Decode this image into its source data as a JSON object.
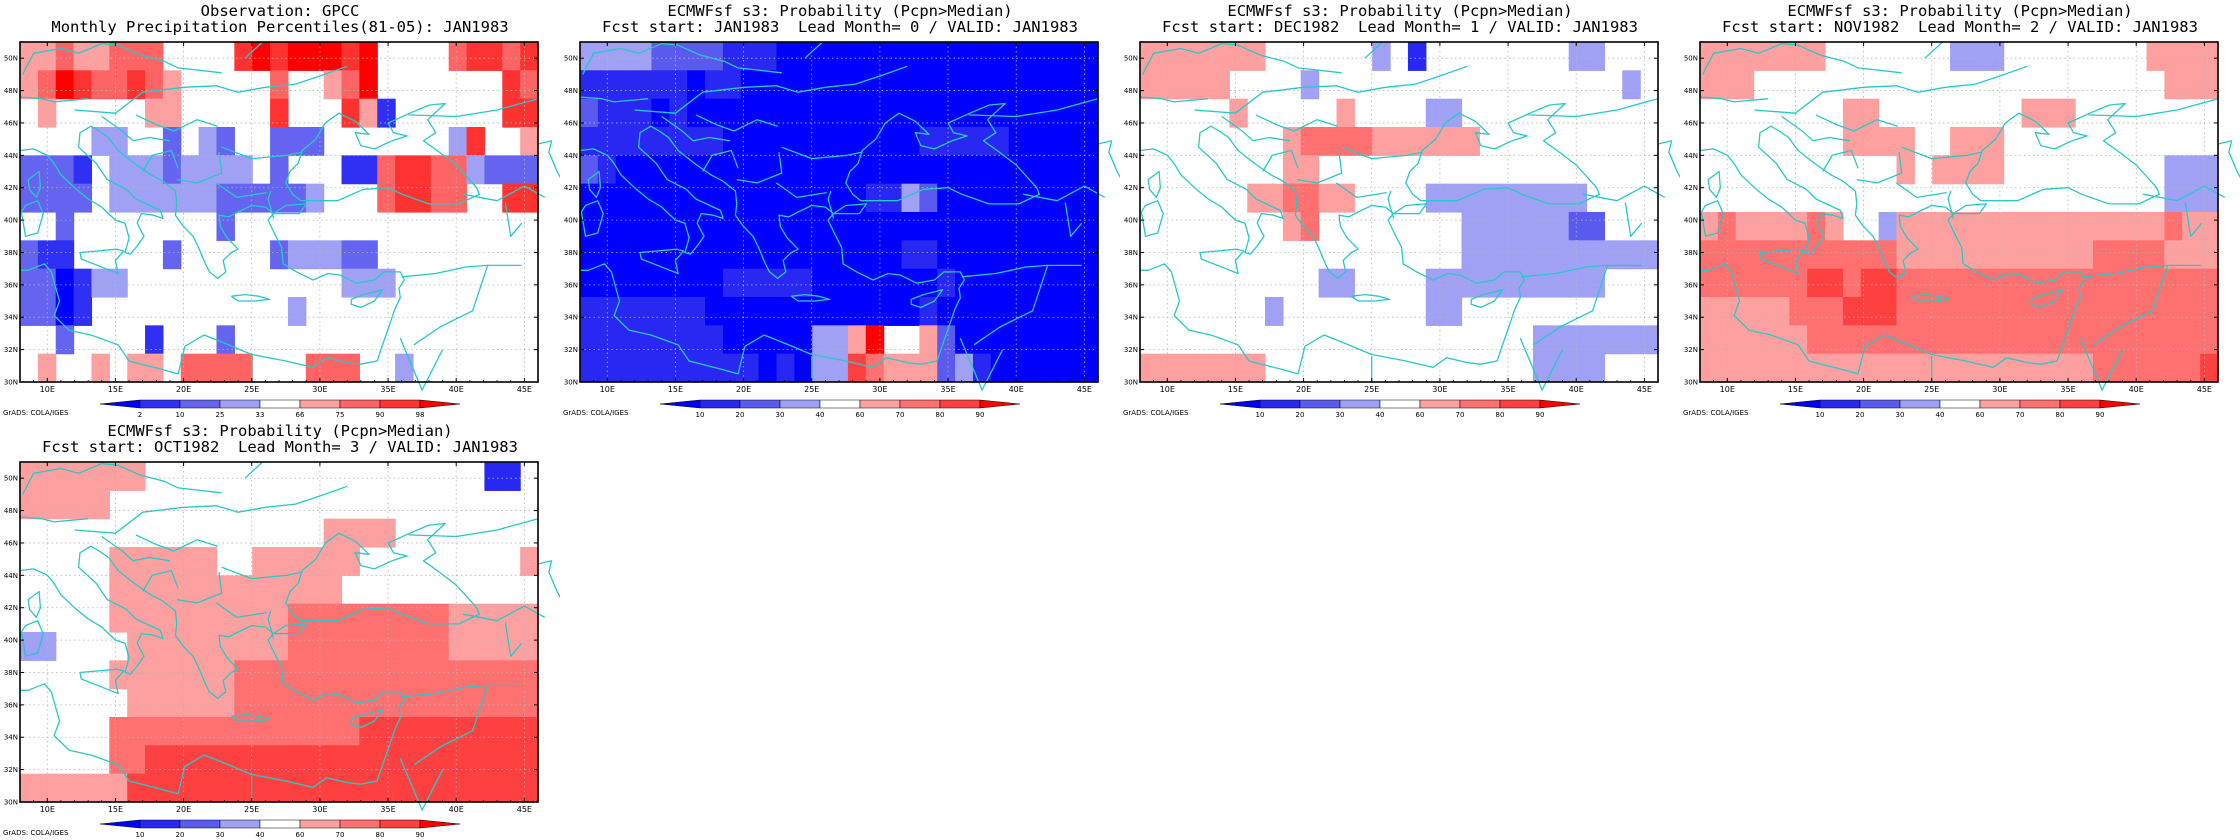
{
  "palettes": {
    "obs": [
      "#0000ff",
      "#3030f5",
      "#6464f0",
      "#a0a0f5",
      "#ffffff",
      "#ffa0a0",
      "#ff6464",
      "#ff3232",
      "#ff0000"
    ],
    "prob": [
      "#0000ff",
      "#2828f2",
      "#5a5aee",
      "#a0a0f5",
      "#ffffff",
      "#ffa0a0",
      "#ff7070",
      "#ff4040",
      "#ff0000"
    ]
  },
  "panels": [
    {
      "id": "obs",
      "title_line1": "Observation: GPCC",
      "title_line2": "Monthly Precipitation Percentiles(81-05): JAN1983",
      "credit": "GrADS: COLA/IGES",
      "palette": "obs",
      "colorbar_labels": [
        "2",
        "10",
        "25",
        "33",
        "66",
        "75",
        "90",
        "98"
      ],
      "grid_rows": [
        "55655666444478788878444467767",
        "56876676544444644568444444476",
        "45444445544444744475144444477",
        "44443344243244222444444437445",
        "22214333233334244411677663222",
        "22224333333222223444677664477",
        "44244444444244444444444444444",
        "21144444244444233322444444444",
        "22013344444444444433344444444",
        "22014444444444434444444444444",
        "44244441444244444444444444444",
        "45445455466664446664434444444"
      ]
    },
    {
      "id": "lead0",
      "title_line1": "ECMWFsf s3: Probability (Pcpn>Median)",
      "title_line2": "Fcst start: JAN1983  Lead Month= 0 / VALID: JAN1983",
      "credit": "GrADS: COLA/IGES",
      "palette": "prob",
      "colorbar_labels": [
        "10",
        "20",
        "30",
        "40",
        "60",
        "70",
        "80",
        "90"
      ],
      "grid_rows": [
        "33332222111000000000000000000",
        "11111101100000000000000000000",
        "21110100000000000000000000000",
        "11111111000000000001111100000",
        "21000000000000000000000000000",
        "00000000000000001132000000000",
        "00000000000000000000000000000",
        "00000000000000000011000000000",
        "00000000111110000000100000000",
        "11111110000000000001000000000",
        "11111111000003358445200000000",
        "11111111110103376555231000000"
      ]
    },
    {
      "id": "lead1",
      "title_line1": "ECMWFsf s3: Probability (Pcpn>Median)",
      "title_line2": "Fcst start: DEC1982  Lead Month= 1 / VALID: JAN1983",
      "credit": "GrADS: COLA/IGES",
      "palette": "prob",
      "colorbar_labels": [
        "10",
        "20",
        "30",
        "40",
        "60",
        "70",
        "80",
        "90"
      ],
      "grid_rows": [
        "55555554444443414444444433444",
        "55555444434444444444444444434",
        "44444544444544443344444444444",
        "44444444566665555554444444444",
        "44444444554444444444444444444",
        "44444455665544443333333334444",
        "44444444564444444433333322444",
        "44444444444444444433333333333",
        "44444444443344443333333333444",
        "44444443444444443344444444444",
        "44444444444444444444443333333",
        "55555554444444444444443333444"
      ]
    },
    {
      "id": "lead2",
      "title_line1": "ECMWFsf s3: Probability (Pcpn>Median)",
      "title_line2": "Fcst start: NOV1982  Lead Month= 2 / VALID: JAN1983",
      "credit": "GrADS: COLA/IGES",
      "palette": "prob",
      "colorbar_labels": [
        "10",
        "20",
        "30",
        "40",
        "60",
        "70",
        "80",
        "90"
      ],
      "grid_rows": [
        "55555554444444333444444445555",
        "55544444444444444444444444555",
        "44444444554444444455544444444",
        "44444444555544555444444444444",
        "44444444444545555444444444333",
        "44444444444444444444444444333",
        "56555565443555555555555555655",
        "66666666666555555555556666555",
        "66666677677666666666666666666",
        "55555666777666666666666666666",
        "55555566666666666666666666666",
        "55555555555555555555556666667"
      ]
    },
    {
      "id": "lead3",
      "title_line1": "ECMWFsf s3: Probability (Pcpn>Median)",
      "title_line2": "Fcst start: OCT1982  Lead Month= 3 / VALID: JAN1983",
      "credit": "GrADS: COLA/IGES",
      "palette": "prob",
      "colorbar_labels": [
        "10",
        "20",
        "30",
        "40",
        "60",
        "70",
        "80",
        "90"
      ],
      "grid_rows": [
        "55555554444444444444444444114",
        "55555444444444444444444444444",
        "44444444444444444555544444444",
        "44444555555445555554444444445",
        "44444555555555555544444444444",
        "44444555555555566666666655555",
        "33444455555555566666666655555",
        "44444555555566666666666666666",
        "44444455555566666666666666666",
        "44444666666666666667777777777",
        "44444667777777777777777777777",
        "55555577777777777777777777777"
      ]
    }
  ],
  "axes": {
    "lon_labels": [
      "10E",
      "15E",
      "20E",
      "25E",
      "30E",
      "35E",
      "40E",
      "45E"
    ],
    "lat_labels": [
      "30N",
      "32N",
      "34N",
      "36N",
      "38N",
      "40N",
      "42N",
      "44N",
      "46N",
      "48N",
      "50N"
    ]
  },
  "map_colors": {
    "coast": "#28c8c8",
    "grid": "#b4b4b4",
    "frame": "#000000"
  }
}
